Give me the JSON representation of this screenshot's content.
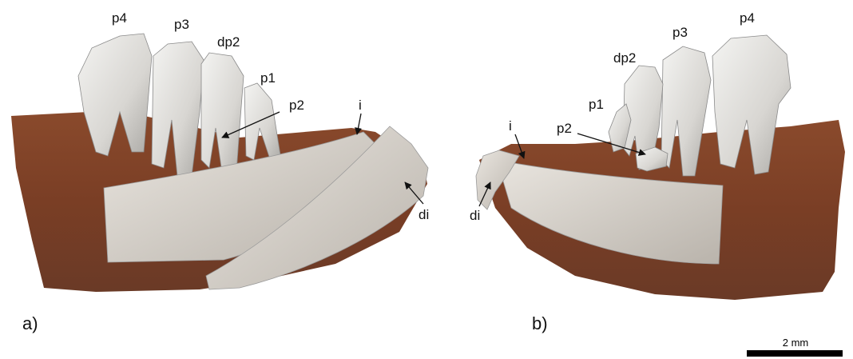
{
  "panels": [
    {
      "label": "a)",
      "annotations": [
        "p4",
        "p3",
        "dp2",
        "p1",
        "p2",
        "i",
        "di"
      ]
    },
    {
      "label": "b)",
      "annotations": [
        "p1",
        "dp2",
        "p3",
        "p4",
        "p2",
        "i",
        "di"
      ]
    }
  ],
  "scale_bar": "2 mm"
}
